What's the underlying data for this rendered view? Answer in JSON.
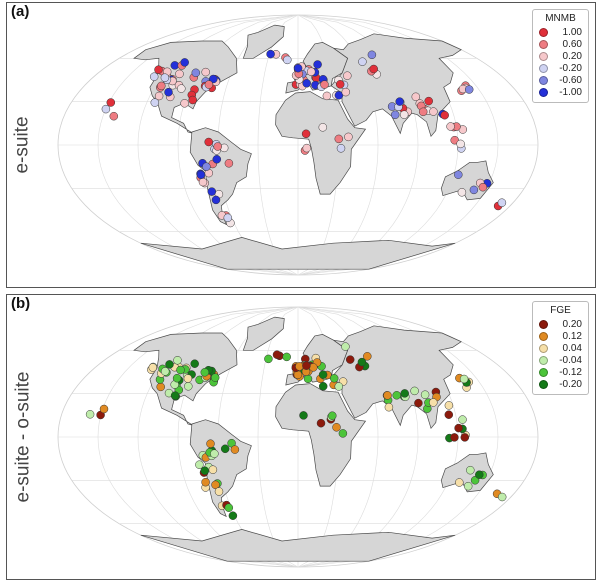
{
  "panels": [
    {
      "id": "a",
      "label": "(a)",
      "side_label": "e-suite",
      "legend": {
        "title": "MNMB",
        "entries": [
          {
            "label": "1.00",
            "color": "#e0303a"
          },
          {
            "label": "0.60",
            "color": "#ee7c82"
          },
          {
            "label": "0.20",
            "color": "#f6c8cb"
          },
          {
            "label": "-0.20",
            "color": "#cfd3f2"
          },
          {
            "label": "-0.60",
            "color": "#7f86e0"
          },
          {
            "label": "-1.00",
            "color": "#2430d8"
          }
        ]
      }
    },
    {
      "id": "b",
      "label": "(b)",
      "side_label": "e-suite - o-suite",
      "legend": {
        "title": "FGE",
        "entries": [
          {
            "label": "0.20",
            "color": "#8c1a0c"
          },
          {
            "label": "0.12",
            "color": "#e08a22"
          },
          {
            "label": "0.04",
            "color": "#f6dfa8"
          },
          {
            "label": "-0.04",
            "color": "#bfecab"
          },
          {
            "label": "-0.12",
            "color": "#4cc43a"
          },
          {
            "label": "-0.20",
            "color": "#147a18"
          }
        ]
      }
    }
  ]
}
